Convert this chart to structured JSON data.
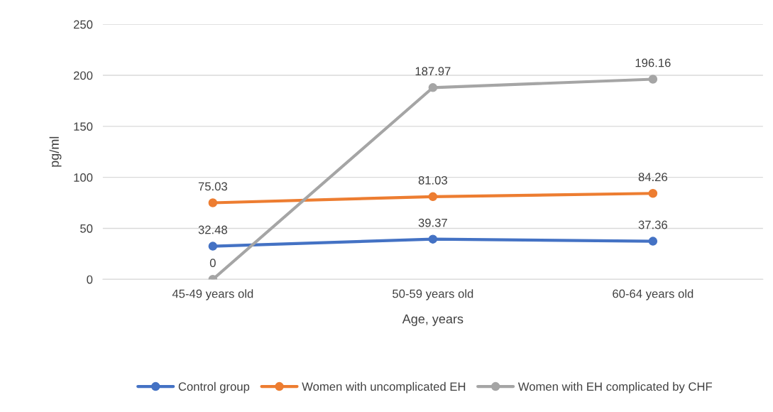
{
  "chart_data": {
    "type": "line",
    "xlabel": "Age, years",
    "ylabel": "pg/ml",
    "categories": [
      "45-49 years old",
      "50-59 years old",
      "60-64 years old"
    ],
    "series": [
      {
        "name": "Control group",
        "color": "#4472c4",
        "values": [
          32.48,
          39.37,
          37.36
        ]
      },
      {
        "name": "Women with uncomplicated EH",
        "color": "#ed7d31",
        "values": [
          75.03,
          81.03,
          84.26
        ]
      },
      {
        "name": "Women with EH complicated by CHF",
        "color": "#a5a5a5",
        "values": [
          0,
          187.97,
          196.16
        ]
      }
    ],
    "ylim": [
      0,
      250
    ],
    "yticks": [
      0,
      50,
      100,
      150,
      200,
      250
    ],
    "grid": "y",
    "legend": "bottom",
    "marker": "circle",
    "line_style": "solid",
    "data_labels": true
  }
}
